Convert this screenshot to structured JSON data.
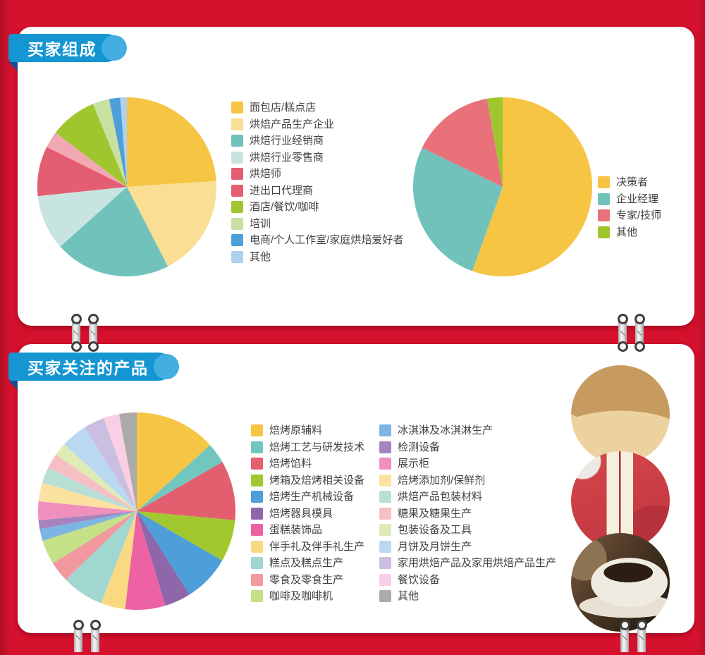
{
  "page": {
    "background_color": "#D5112D",
    "badge_color": "#1596D2",
    "badge_cap_color": "#45AEE0",
    "badge_fold_color": "#1B4C92",
    "card_color": "#FFFFFF"
  },
  "sections": [
    {
      "title": "买家组成"
    },
    {
      "title": "买家关注的产品"
    }
  ],
  "photos": [
    {
      "subject": "walnut-mooncake"
    },
    {
      "subject": "red-gift-package"
    },
    {
      "subject": "coffee-cup-and-beans"
    }
  ],
  "chart_data": [
    {
      "type": "pie",
      "title": "买家组成",
      "legend_position": "right",
      "start_angle_deg": 0,
      "items": [
        {
          "label": "面包店/糕点店",
          "color": "#F6C544",
          "value": 24
        },
        {
          "label": "烘焙产品生产企业",
          "color": "#FADE93",
          "value": 18.5
        },
        {
          "label": "烘焙行业经销商",
          "color": "#72C2BC",
          "value": 21
        },
        {
          "label": "烘焙行业零售商",
          "color": "#C8E4E1",
          "value": 10
        },
        {
          "label": "烘焙师",
          "color": "#E35E70",
          "value": 9
        },
        {
          "label": "进出口代理商",
          "color": "#E35E70",
          "pie_color": "#F3A7B3",
          "value": 3
        },
        {
          "label": "酒店/餐饮/咖啡",
          "color": "#A0C62F",
          "value": 8.5
        },
        {
          "label": "培训",
          "color": "#C8E0A2",
          "value": 3
        },
        {
          "label": "电商/个人工作室/家庭烘焙爱好者",
          "color": "#4D9FD9",
          "value": 2
        },
        {
          "label": "其他",
          "color": "#AFD1EE",
          "value": 1.2
        }
      ]
    },
    {
      "type": "pie",
      "title": "买家组成",
      "legend_position": "right",
      "start_angle_deg": 0,
      "items": [
        {
          "label": "决策者",
          "color": "#F6C544",
          "value": 55.5
        },
        {
          "label": "企业经理",
          "color": "#72C2BC",
          "value": 26.7
        },
        {
          "label": "专家/技师",
          "color": "#E8717A",
          "value": 15
        },
        {
          "label": "其他",
          "color": "#A0C62F",
          "value": 2.8
        }
      ]
    },
    {
      "type": "pie",
      "title": "买家关注的产品",
      "legend_position": "right-two-columns",
      "start_angle_deg": 0,
      "items": [
        {
          "label": "焙烤原辅料",
          "color": "#F6C544",
          "value": 13
        },
        {
          "label": "焙烤工艺与研发技术",
          "color": "#72C6C0",
          "value": 3.3
        },
        {
          "label": "焙烤馅料",
          "color": "#E35E6E",
          "value": 9.5
        },
        {
          "label": "烤箱及焙烤相关设备",
          "color": "#A2C830",
          "value": 6.7
        },
        {
          "label": "焙烤生产机械设备",
          "color": "#4D9ED9",
          "value": 7.5
        },
        {
          "label": "焙烤器具模具",
          "color": "#8F66AA",
          "value": 4.2
        },
        {
          "label": "蛋糕装饰品",
          "color": "#ED62A2",
          "value": 6.4
        },
        {
          "label": "伴手礼及伴手礼生产",
          "color": "#FAD983",
          "value": 3.9
        },
        {
          "label": "糕点及糕点生产",
          "color": "#A0D7D0",
          "value": 6.7
        },
        {
          "label": "零食及零食生产",
          "color": "#F2989F",
          "value": 3.3
        },
        {
          "label": "咖啡及咖啡机",
          "color": "#C5E187",
          "value": 3.9
        },
        {
          "label": "冰淇淋及冰淇淋生产",
          "color": "#7CB5E4",
          "value": 1.9
        },
        {
          "label": "检测设备",
          "color": "#A583BE",
          "value": 1.4
        },
        {
          "label": "展示柜",
          "color": "#EF8FBC",
          "value": 3.0
        },
        {
          "label": "焙烤添加剂/保鲜剂",
          "color": "#FBE2A1",
          "value": 3.0
        },
        {
          "label": "烘焙产品包装材料",
          "color": "#B7DFD6",
          "value": 2.5
        },
        {
          "label": "糖果及糖果生产",
          "color": "#F6BFC3",
          "value": 2.4
        },
        {
          "label": "包装设备及工具",
          "color": "#DDEBB5",
          "value": 2.1
        },
        {
          "label": "月饼及月饼生产",
          "color": "#BAD8F2",
          "value": 4.2
        },
        {
          "label": "家用烘焙产品及家用烘焙产品生产",
          "color": "#CABFE1",
          "value": 3.3
        },
        {
          "label": "餐饮设备",
          "color": "#F8CFE4",
          "value": 2.5
        },
        {
          "label": "其他",
          "color": "#ABABAB",
          "value": 2.8
        }
      ]
    }
  ]
}
